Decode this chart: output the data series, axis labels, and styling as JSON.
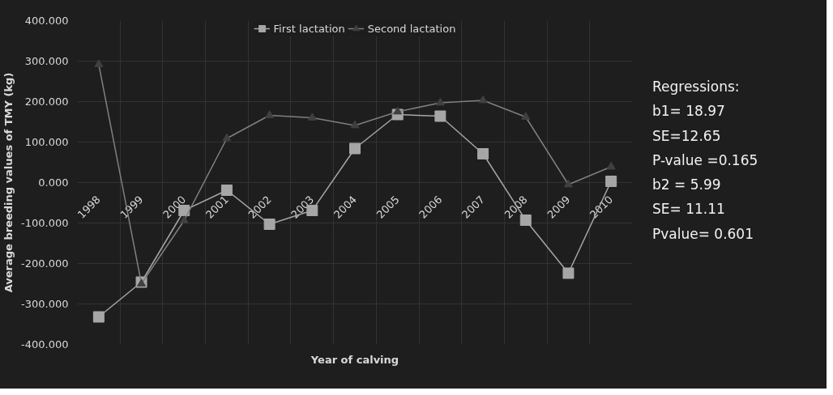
{
  "chart_data": {
    "type": "line",
    "categories": [
      "1998",
      "1999",
      "2000",
      "2001",
      "2002",
      "2003",
      "2004",
      "2005",
      "2006",
      "2007",
      "2008",
      "2009",
      "2010"
    ],
    "series": [
      {
        "name": "First lactation",
        "color": "#a6a6a6",
        "marker": "square",
        "values": [
          -332,
          -246,
          -69,
          -19,
          -103,
          -69,
          84,
          168,
          164,
          71,
          -93,
          -224,
          3
        ]
      },
      {
        "name": "Second lactation",
        "color": "#404040",
        "marker": "triangle",
        "values": [
          292,
          -250,
          -94,
          109,
          166,
          160,
          141,
          175,
          197,
          203,
          162,
          -5,
          39
        ]
      }
    ],
    "ylim": [
      -400,
      400
    ],
    "yticks": [
      {
        "value": -400,
        "label": "-400.000"
      },
      {
        "value": -300,
        "label": "-300.000"
      },
      {
        "value": -200,
        "label": "-200.000"
      },
      {
        "value": -100,
        "label": "-100.000"
      },
      {
        "value": 0,
        "label": "0.000"
      },
      {
        "value": 100,
        "label": "100.000"
      },
      {
        "value": 200,
        "label": "200.000"
      },
      {
        "value": 300,
        "label": "300.000"
      },
      {
        "value": 400,
        "label": "400.000"
      }
    ],
    "xlabel": "Year of calving",
    "ylabel": "Average breeding values of TMY (kg)",
    "annotations": [
      "Regressions:",
      "b1= 18.97",
      "SE=12.65",
      "P-value =0.165",
      "b2 = 5.99",
      "SE= 11.11",
      "Pvalue= 0.601"
    ],
    "grid": true,
    "legend": "top",
    "line_style": "solid"
  }
}
